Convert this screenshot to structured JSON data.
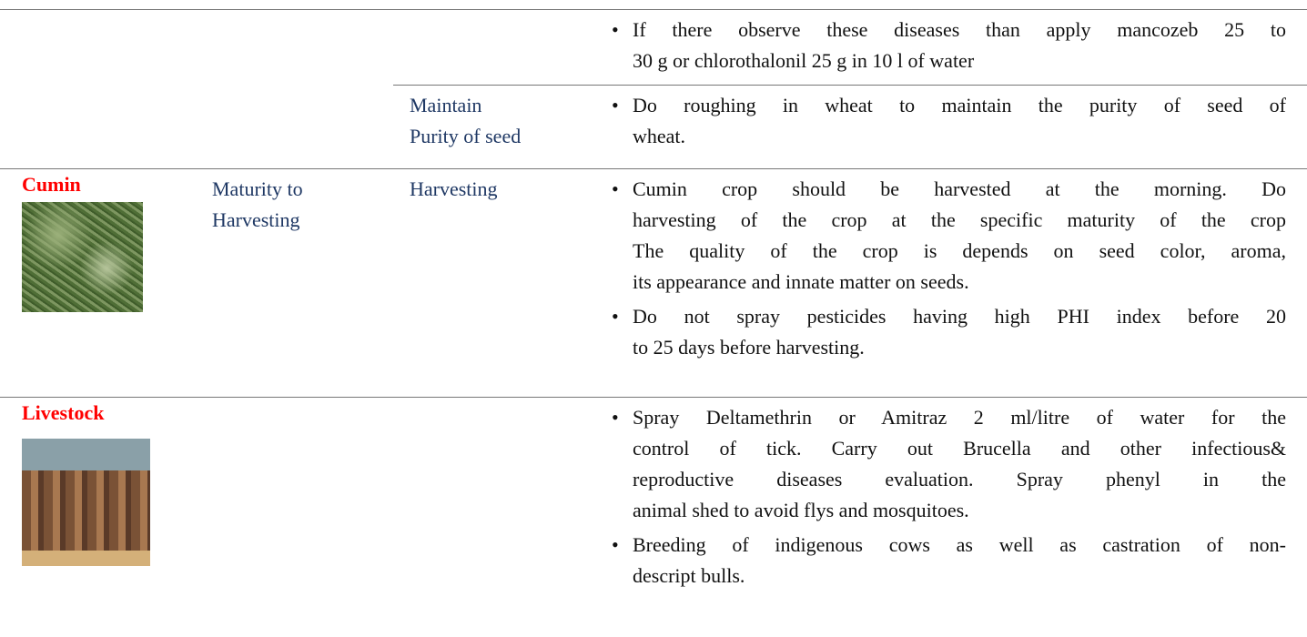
{
  "table": {
    "rows": [
      {
        "advisory": [
          [
            "If there observe these diseases than apply mancozeb 25 to",
            "30 g or chlorothalonil 25 g in 10 l of water"
          ]
        ]
      },
      {
        "operation": [
          "Maintain",
          "Purity of seed"
        ],
        "advisory": [
          [
            "Do roughing in wheat to maintain the purity of seed of",
            "wheat."
          ]
        ]
      },
      {
        "crop": "Cumin",
        "stage": [
          "Maturity to",
          "Harvesting"
        ],
        "operation": [
          "Harvesting"
        ],
        "advisory": [
          [
            "Cumin crop should be harvested at the morning. Do",
            "harvesting of the crop at the specific maturity of the crop",
            "The quality of the crop is depends on seed color, aroma,",
            "its appearance and innate matter on seeds."
          ],
          [
            "Do not spray pesticides having high PHI index before 20",
            "to 25 days before harvesting."
          ]
        ]
      },
      {
        "crop": "Livestock",
        "advisory": [
          [
            "Spray Deltamethrin or Amitraz 2 ml/litre of water for the",
            "control of tick. Carry out Brucella and other infectious&",
            "reproductive diseases evaluation. Spray phenyl in the",
            "animal shed to avoid flys and mosquitoes."
          ],
          [
            "Breeding of indigenous cows as well as castration of non-",
            "descript bulls."
          ]
        ]
      }
    ]
  }
}
